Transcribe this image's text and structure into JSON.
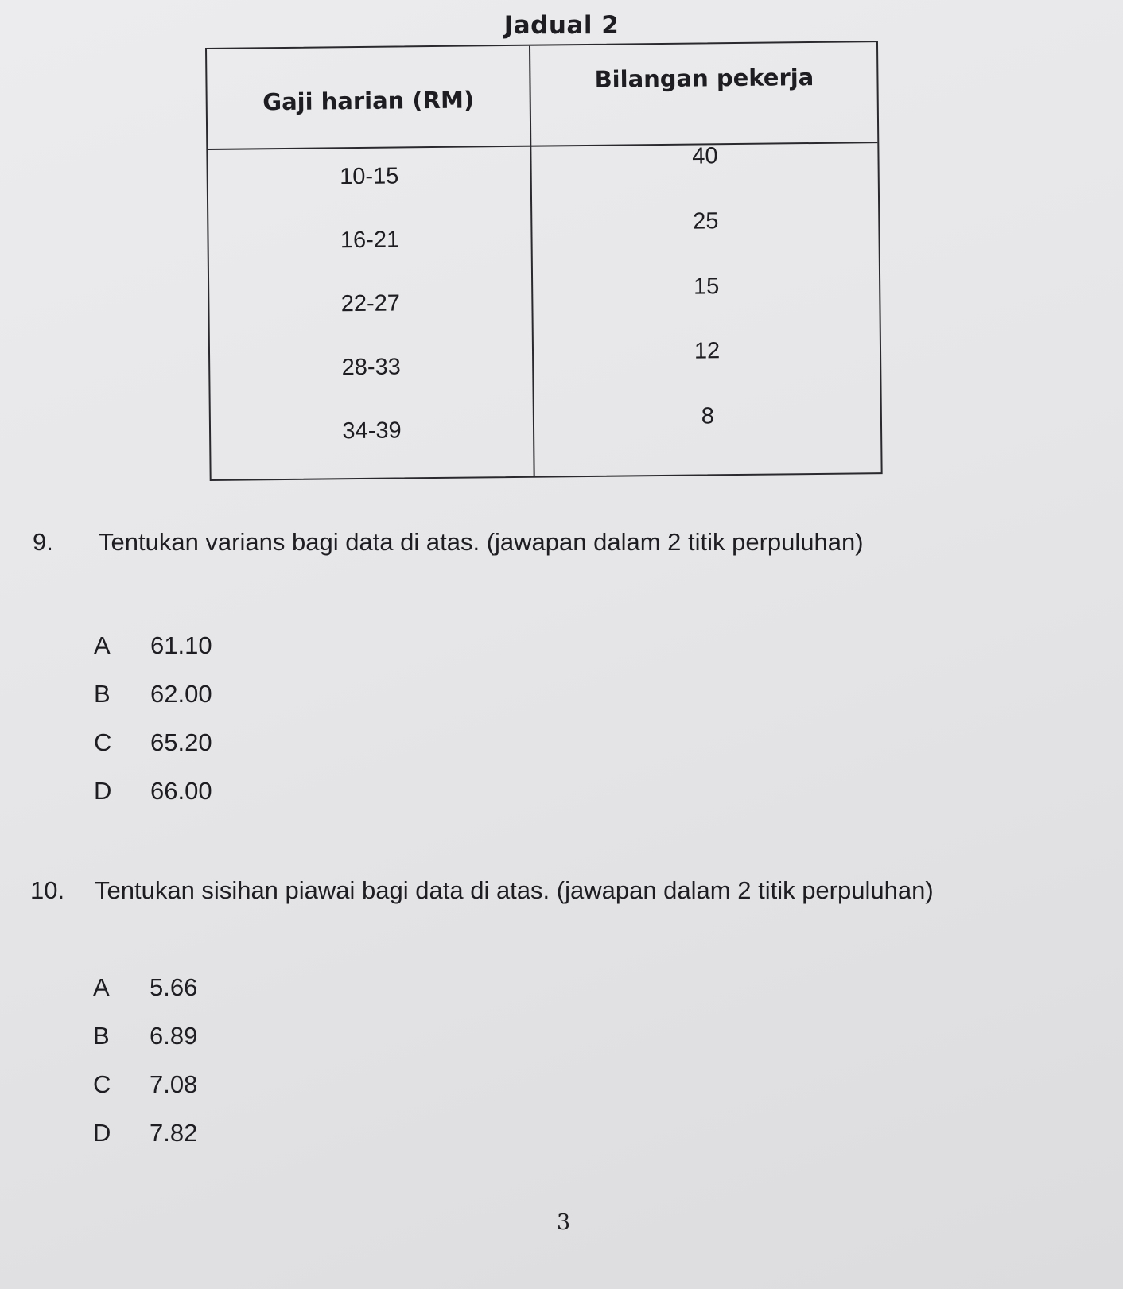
{
  "table": {
    "caption": "Jadual 2",
    "headers": [
      "Gaji harian (RM)",
      "Bilangan pekerja"
    ],
    "rows": [
      {
        "range": "10-15",
        "count": "40"
      },
      {
        "range": "16-21",
        "count": "25"
      },
      {
        "range": "22-27",
        "count": "15"
      },
      {
        "range": "28-33",
        "count": "12"
      },
      {
        "range": "34-39",
        "count": "8"
      }
    ]
  },
  "questions": [
    {
      "number": "9.",
      "text": "Tentukan varians bagi data di atas. (jawapan dalam 2 titik perpuluhan)",
      "options": [
        {
          "letter": "A",
          "value": "61.10"
        },
        {
          "letter": "B",
          "value": "62.00"
        },
        {
          "letter": "C",
          "value": "65.20"
        },
        {
          "letter": "D",
          "value": "66.00"
        }
      ]
    },
    {
      "number": "10.",
      "text": "Tentukan sisihan piawai bagi data di atas. (jawapan dalam 2 titik perpuluhan)",
      "options": [
        {
          "letter": "A",
          "value": "5.66"
        },
        {
          "letter": "B",
          "value": "6.89"
        },
        {
          "letter": "C",
          "value": "7.08"
        },
        {
          "letter": "D",
          "value": "7.82"
        }
      ]
    }
  ],
  "page_number": "3"
}
